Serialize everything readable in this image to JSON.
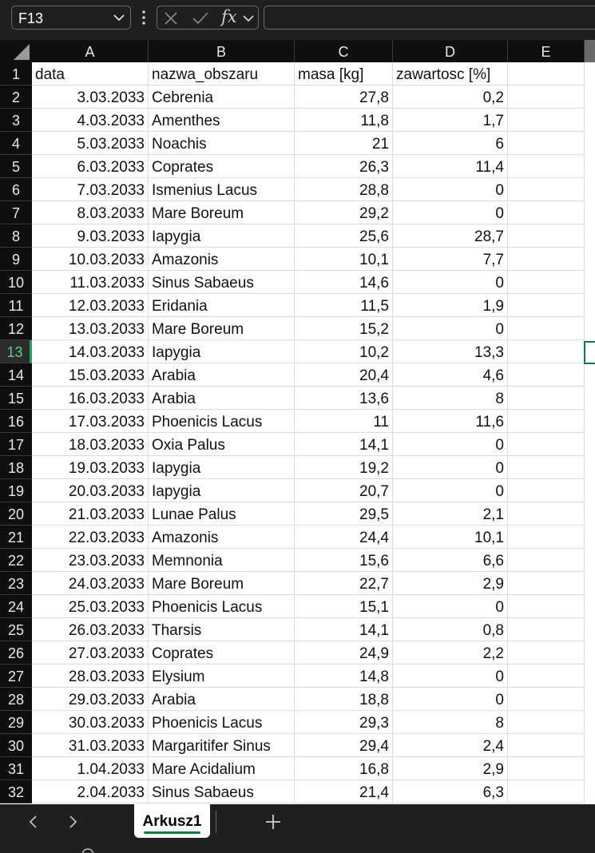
{
  "name_box": {
    "value": "F13"
  },
  "formula_bar": {
    "fx_label": "fx",
    "value": ""
  },
  "columns": [
    "A",
    "B",
    "C",
    "D",
    "E"
  ],
  "selected_cell": "F13",
  "selected_row": 13,
  "header_row": {
    "a": "data",
    "b": "nazwa_obszaru",
    "c": "masa [kg]",
    "d": "zawartosc [%]"
  },
  "rows": [
    {
      "n": "2",
      "a": "3.03.2033",
      "b": "Cebrenia",
      "c": "27,8",
      "d": "0,2"
    },
    {
      "n": "3",
      "a": "4.03.2033",
      "b": "Amenthes",
      "c": "11,8",
      "d": "1,7"
    },
    {
      "n": "4",
      "a": "5.03.2033",
      "b": "Noachis",
      "c": "21",
      "d": "6"
    },
    {
      "n": "5",
      "a": "6.03.2033",
      "b": "Coprates",
      "c": "26,3",
      "d": "11,4"
    },
    {
      "n": "6",
      "a": "7.03.2033",
      "b": "Ismenius Lacus",
      "c": "28,8",
      "d": "0"
    },
    {
      "n": "7",
      "a": "8.03.2033",
      "b": "Mare Boreum",
      "c": "29,2",
      "d": "0"
    },
    {
      "n": "8",
      "a": "9.03.2033",
      "b": "Iapygia",
      "c": "25,6",
      "d": "28,7"
    },
    {
      "n": "9",
      "a": "10.03.2033",
      "b": "Amazonis",
      "c": "10,1",
      "d": "7,7"
    },
    {
      "n": "10",
      "a": "11.03.2033",
      "b": "Sinus Sabaeus",
      "c": "14,6",
      "d": "0"
    },
    {
      "n": "11",
      "a": "12.03.2033",
      "b": "Eridania",
      "c": "11,5",
      "d": "1,9"
    },
    {
      "n": "12",
      "a": "13.03.2033",
      "b": "Mare Boreum",
      "c": "15,2",
      "d": "0"
    },
    {
      "n": "13",
      "a": "14.03.2033",
      "b": "Iapygia",
      "c": "10,2",
      "d": "13,3"
    },
    {
      "n": "14",
      "a": "15.03.2033",
      "b": "Arabia",
      "c": "20,4",
      "d": "4,6"
    },
    {
      "n": "15",
      "a": "16.03.2033",
      "b": "Arabia",
      "c": "13,6",
      "d": "8"
    },
    {
      "n": "16",
      "a": "17.03.2033",
      "b": "Phoenicis Lacus",
      "c": "11",
      "d": "11,6"
    },
    {
      "n": "17",
      "a": "18.03.2033",
      "b": "Oxia Palus",
      "c": "14,1",
      "d": "0"
    },
    {
      "n": "18",
      "a": "19.03.2033",
      "b": "Iapygia",
      "c": "19,2",
      "d": "0"
    },
    {
      "n": "19",
      "a": "20.03.2033",
      "b": "Iapygia",
      "c": "20,7",
      "d": "0"
    },
    {
      "n": "20",
      "a": "21.03.2033",
      "b": "Lunae Palus",
      "c": "29,5",
      "d": "2,1"
    },
    {
      "n": "21",
      "a": "22.03.2033",
      "b": "Amazonis",
      "c": "24,4",
      "d": "10,1"
    },
    {
      "n": "22",
      "a": "23.03.2033",
      "b": "Memnonia",
      "c": "15,6",
      "d": "6,6"
    },
    {
      "n": "23",
      "a": "24.03.2033",
      "b": "Mare Boreum",
      "c": "22,7",
      "d": "2,9"
    },
    {
      "n": "24",
      "a": "25.03.2033",
      "b": "Phoenicis Lacus",
      "c": "15,1",
      "d": "0"
    },
    {
      "n": "25",
      "a": "26.03.2033",
      "b": "Tharsis",
      "c": "14,1",
      "d": "0,8"
    },
    {
      "n": "26",
      "a": "27.03.2033",
      "b": "Coprates",
      "c": "24,9",
      "d": "2,2"
    },
    {
      "n": "27",
      "a": "28.03.2033",
      "b": "Elysium",
      "c": "14,8",
      "d": "0"
    },
    {
      "n": "28",
      "a": "29.03.2033",
      "b": "Arabia",
      "c": "18,8",
      "d": "0"
    },
    {
      "n": "29",
      "a": "30.03.2033",
      "b": "Phoenicis Lacus",
      "c": "29,3",
      "d": "8"
    },
    {
      "n": "30",
      "a": "31.03.2033",
      "b": "Margaritifer Sinus",
      "c": "29,4",
      "d": "2,4"
    },
    {
      "n": "31",
      "a": "1.04.2033",
      "b": "Mare Acidalium",
      "c": "16,8",
      "d": "2,9"
    },
    {
      "n": "32",
      "a": "2.04.2033",
      "b": "Sinus Sabaeus",
      "c": "21,4",
      "d": "6,3"
    }
  ],
  "sheet_tabs": {
    "active": "Arkusz1"
  },
  "colors": {
    "accent": "#107c41",
    "header_bg": "#0f0f0f",
    "chrome_bg": "#1f1f1f"
  },
  "icons": {
    "name_box_dropdown": "chevron-down-icon",
    "more": "vertical-dots-icon",
    "cancel": "close-icon",
    "enter": "checkmark-icon",
    "prev": "chevron-left-icon",
    "next": "chevron-right-icon",
    "add": "plus-icon"
  }
}
